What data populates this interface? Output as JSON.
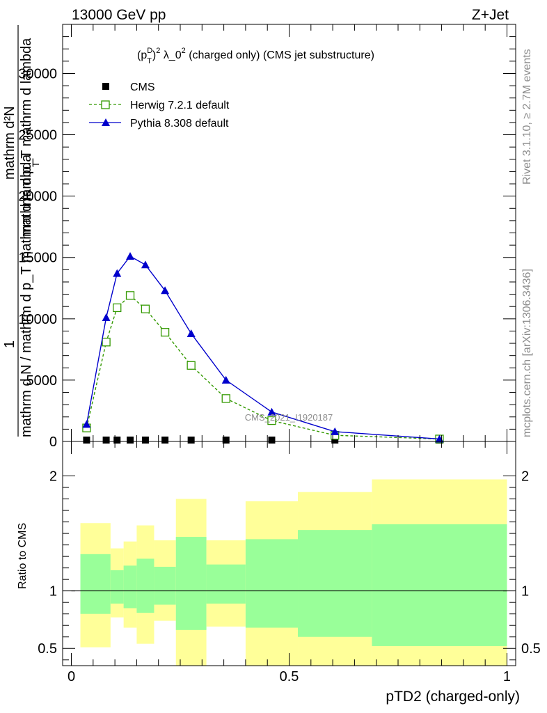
{
  "header": {
    "left": "13000 GeV pp",
    "right": "Z+Jet"
  },
  "side_labels": {
    "rivet": "Rivet 3.1.10, ≥ 2.7M events",
    "mcplots": "mcplots.cern.ch [arXiv:1306.3436]"
  },
  "watermark": "CMS_2021_I1920187",
  "chart_data": [
    {
      "type": "line",
      "title": "(p_T^D)^2 λ_0^2 (charged only) (CMS jet substructure)",
      "title_parts": {
        "p": "(p",
        "sup_D": "D",
        "sub_T": "T",
        "close": ")",
        "sup_2a": "2",
        "mid": " λ_0",
        "sup_2b": "2",
        "tail": " (charged only) (CMS jet substructure)"
      },
      "ylabel_parts": {
        "numerator": "1",
        "denominator": "mathrm d N / mathrm d p_T mathrm d lambda",
        "stack_numerator": "mathrm d²N",
        "stack_denominator": "mathrm d p_T mathrm d lambda",
        "stack_denominator_sub": "T"
      },
      "xlim": [
        -0.02,
        1.02
      ],
      "ylim": [
        0,
        34000
      ],
      "yticks": [
        0,
        5000,
        10000,
        15000,
        20000,
        25000,
        30000
      ],
      "ytick_labels": [
        "0",
        "5000",
        "10000",
        "15000",
        "20000",
        "25000",
        "30000"
      ],
      "legend_position": "top-left",
      "x": [
        0.035,
        0.08,
        0.105,
        0.135,
        0.17,
        0.215,
        0.275,
        0.355,
        0.46,
        0.605,
        0.845
      ],
      "series": [
        {
          "name": "CMS",
          "color": "#000000",
          "marker": "square-filled",
          "values": [
            0,
            0,
            0,
            0,
            0,
            0,
            0,
            0,
            0,
            0,
            0
          ]
        },
        {
          "name": "Herwig 7.2.1 default",
          "color": "#339900",
          "marker": "square-open",
          "dashed": true,
          "values": [
            1100,
            8100,
            10900,
            11900,
            10800,
            8900,
            6200,
            3500,
            1700,
            500,
            200
          ]
        },
        {
          "name": "Pythia 8.308 default",
          "color": "#0000cc",
          "marker": "triangle-filled",
          "dashed": false,
          "values": [
            1400,
            10100,
            13700,
            15100,
            14400,
            12300,
            8800,
            5000,
            2400,
            800,
            200
          ]
        }
      ]
    },
    {
      "type": "area",
      "ylabel": "Ratio to CMS",
      "xlabel": "pTD2 (charged-only)",
      "xlim": [
        -0.02,
        1.02
      ],
      "ylim": [
        0.35,
        2.3
      ],
      "xticks": [
        0,
        0.5,
        1
      ],
      "xtick_labels": [
        "0",
        "0.5",
        "1"
      ],
      "yticks": [
        0.5,
        1,
        2
      ],
      "ytick_labels": [
        "0.5",
        "1",
        "2"
      ],
      "reference_line": 1,
      "bins": [
        {
          "x0": 0.0,
          "x1": 0.09,
          "yellow": [
            0.51,
            1.59
          ],
          "green": [
            0.8,
            1.32
          ]
        },
        {
          "x0": 0.09,
          "x1": 0.12,
          "yellow": [
            0.77,
            1.37
          ],
          "green": [
            0.89,
            1.18
          ]
        },
        {
          "x0": 0.12,
          "x1": 0.15,
          "yellow": [
            0.68,
            1.43
          ],
          "green": [
            0.85,
            1.22
          ]
        },
        {
          "x0": 0.15,
          "x1": 0.19,
          "yellow": [
            0.54,
            1.57
          ],
          "green": [
            0.81,
            1.28
          ]
        },
        {
          "x0": 0.19,
          "x1": 0.24,
          "yellow": [
            0.74,
            1.44
          ],
          "green": [
            0.88,
            1.21
          ]
        },
        {
          "x0": 0.24,
          "x1": 0.31,
          "yellow": [
            0.35,
            1.8
          ],
          "green": [
            0.66,
            1.47
          ]
        },
        {
          "x0": 0.31,
          "x1": 0.4,
          "yellow": [
            0.69,
            1.44
          ],
          "green": [
            0.89,
            1.23
          ]
        },
        {
          "x0": 0.4,
          "x1": 0.52,
          "yellow": [
            0.35,
            1.78
          ],
          "green": [
            0.68,
            1.45
          ]
        },
        {
          "x0": 0.52,
          "x1": 0.69,
          "yellow": [
            0.35,
            1.86
          ],
          "green": [
            0.6,
            1.53
          ]
        },
        {
          "x0": 0.69,
          "x1": 1.0,
          "yellow": [
            0.35,
            1.97
          ],
          "green": [
            0.52,
            1.58
          ]
        }
      ],
      "band_colors": {
        "outer": "#ffff99",
        "inner": "#99ff99"
      }
    }
  ]
}
